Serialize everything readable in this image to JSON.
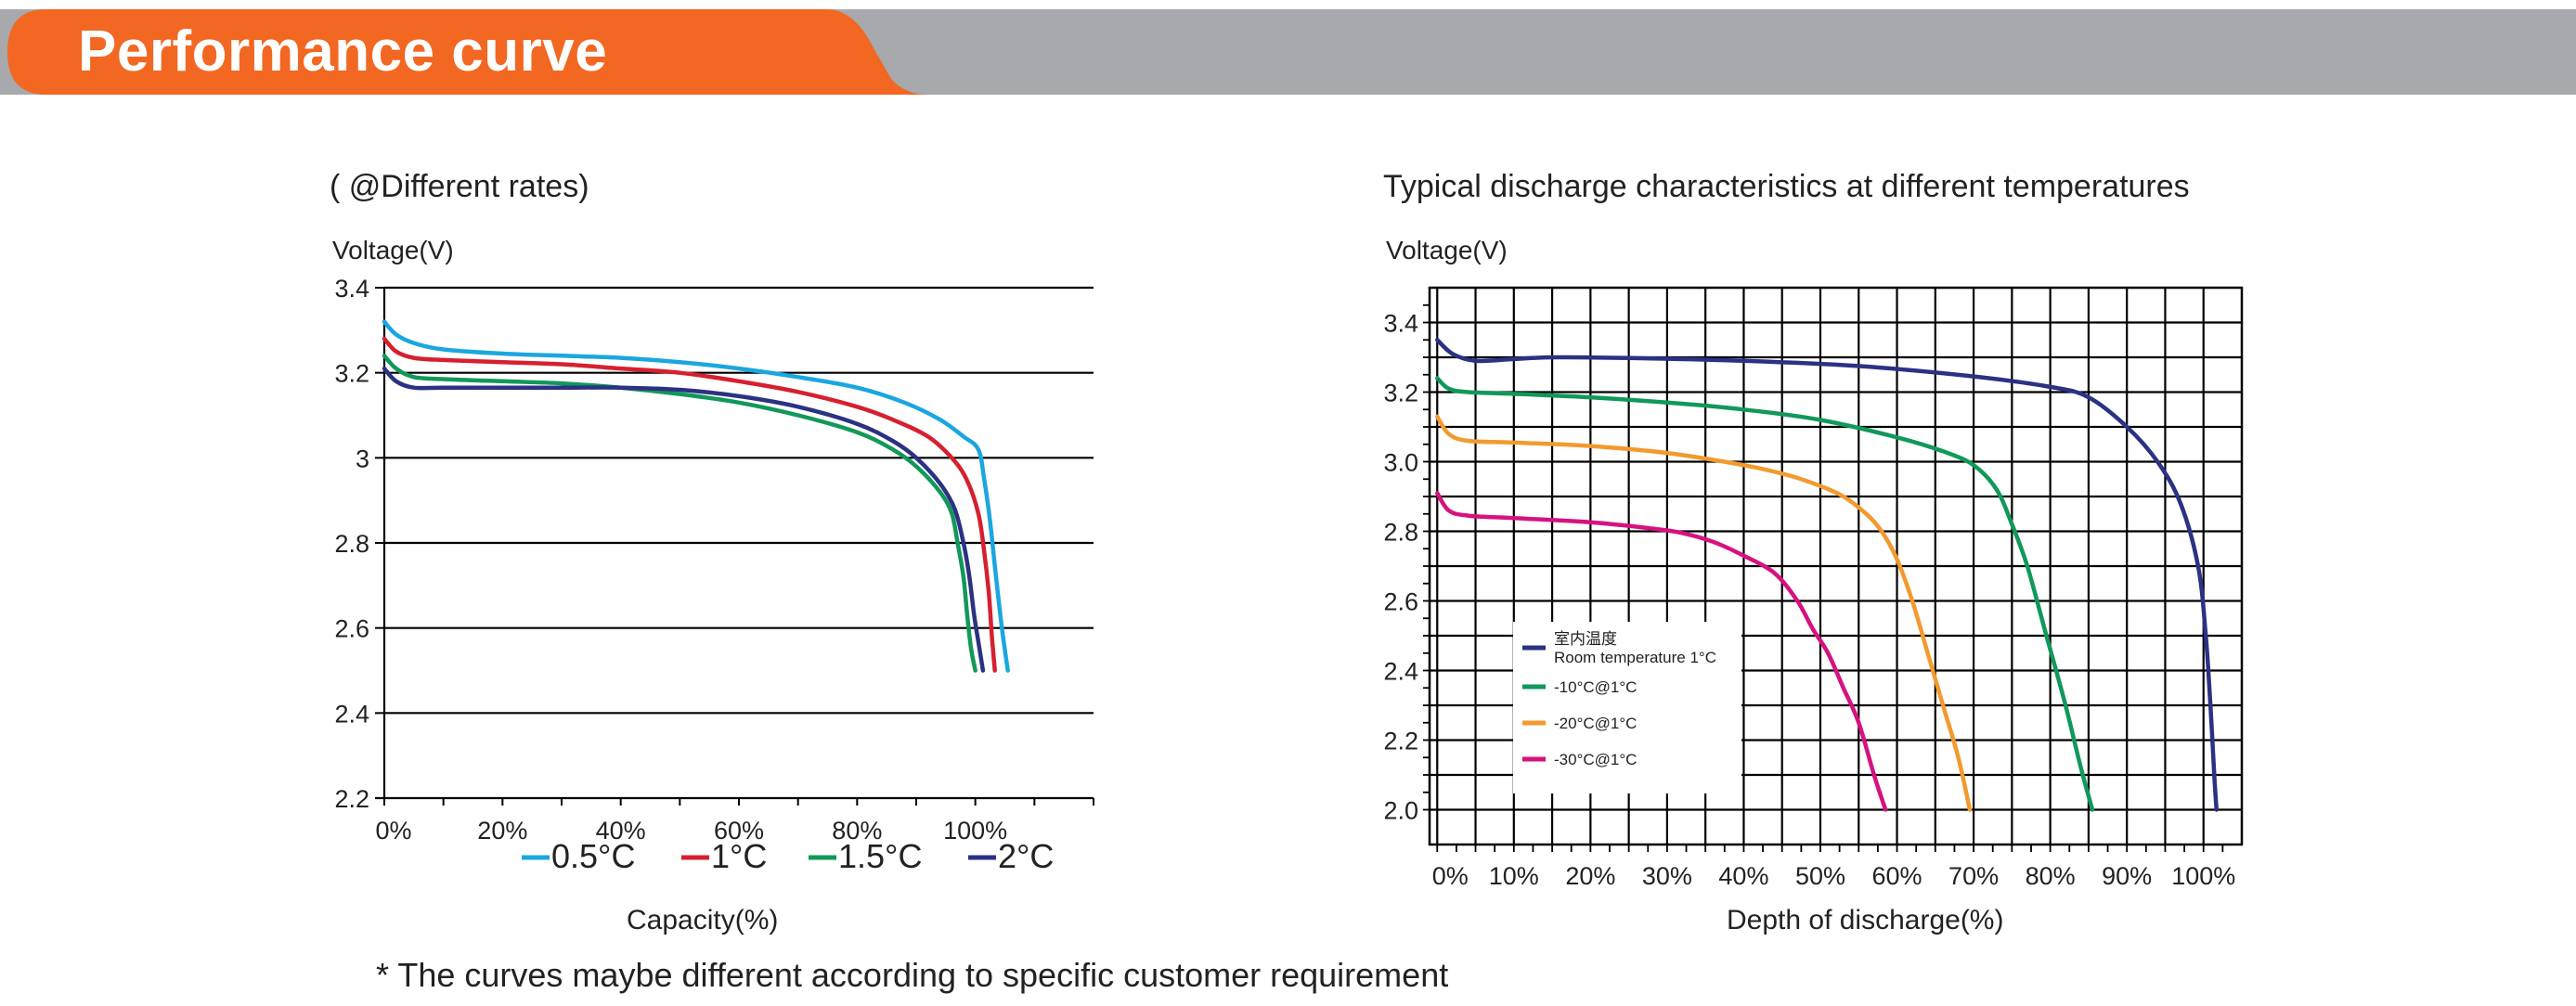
{
  "banner": {
    "title": "Performance curve",
    "accent_color": "#f26722",
    "bar_color": "#a7a9ac"
  },
  "footnote": "* The curves maybe different according to specific customer requirement",
  "chart_data": [
    {
      "type": "line",
      "title": "( @Different rates)",
      "xlabel": "Capacity(%)",
      "ylabel": "Voltage(V)",
      "xlim": [
        0,
        120
      ],
      "ylim": [
        2.2,
        3.4
      ],
      "x_ticks": [
        0,
        20,
        40,
        60,
        80,
        100
      ],
      "x_tick_labels": [
        "0%",
        "20%",
        "40%",
        "60%",
        "80%",
        "100%"
      ],
      "y_ticks": [
        2.2,
        2.4,
        2.6,
        2.8,
        3.0,
        3.2,
        3.4
      ],
      "y_tick_labels": [
        "2.2",
        "2.4",
        "2.6",
        "2.8",
        "3",
        "3.2",
        "3.4"
      ],
      "grid": "horizontal",
      "legend_position": "bottom",
      "series": [
        {
          "name": "0.5°C",
          "color": "#1aa7df",
          "points": [
            [
              0,
              3.32
            ],
            [
              2,
              3.29
            ],
            [
              5,
              3.27
            ],
            [
              10,
              3.255
            ],
            [
              20,
              3.245
            ],
            [
              30,
              3.24
            ],
            [
              40,
              3.235
            ],
            [
              50,
              3.225
            ],
            [
              60,
              3.21
            ],
            [
              70,
              3.19
            ],
            [
              80,
              3.165
            ],
            [
              88,
              3.13
            ],
            [
              94,
              3.09
            ],
            [
              98,
              3.05
            ],
            [
              100.5,
              3.02
            ],
            [
              101.5,
              2.95
            ],
            [
              102.5,
              2.85
            ],
            [
              103.5,
              2.72
            ],
            [
              104.5,
              2.6
            ],
            [
              105.5,
              2.5
            ]
          ]
        },
        {
          "name": "1°C",
          "color": "#d6202f",
          "points": [
            [
              0,
              3.28
            ],
            [
              2,
              3.25
            ],
            [
              5,
              3.235
            ],
            [
              10,
              3.23
            ],
            [
              20,
              3.225
            ],
            [
              30,
              3.22
            ],
            [
              40,
              3.21
            ],
            [
              50,
              3.2
            ],
            [
              60,
              3.18
            ],
            [
              70,
              3.155
            ],
            [
              80,
              3.12
            ],
            [
              86,
              3.09
            ],
            [
              92,
              3.05
            ],
            [
              96,
              3.0
            ],
            [
              98.5,
              2.95
            ],
            [
              100.5,
              2.87
            ],
            [
              101.5,
              2.78
            ],
            [
              102.3,
              2.68
            ],
            [
              102.8,
              2.58
            ],
            [
              103.3,
              2.5
            ]
          ]
        },
        {
          "name": "1.5°C",
          "color": "#11985a",
          "points": [
            [
              0,
              3.24
            ],
            [
              2,
              3.21
            ],
            [
              5,
              3.19
            ],
            [
              10,
              3.185
            ],
            [
              20,
              3.18
            ],
            [
              30,
              3.175
            ],
            [
              40,
              3.165
            ],
            [
              50,
              3.15
            ],
            [
              60,
              3.13
            ],
            [
              70,
              3.1
            ],
            [
              80,
              3.06
            ],
            [
              86,
              3.02
            ],
            [
              90,
              2.98
            ],
            [
              94,
              2.92
            ],
            [
              96,
              2.87
            ],
            [
              97,
              2.8
            ],
            [
              98,
              2.72
            ],
            [
              98.7,
              2.62
            ],
            [
              99.3,
              2.55
            ],
            [
              100,
              2.5
            ]
          ]
        },
        {
          "name": "2°C",
          "color": "#2b3183",
          "points": [
            [
              0,
              3.21
            ],
            [
              2,
              3.18
            ],
            [
              5,
              3.165
            ],
            [
              10,
              3.165
            ],
            [
              20,
              3.165
            ],
            [
              30,
              3.165
            ],
            [
              40,
              3.165
            ],
            [
              50,
              3.16
            ],
            [
              60,
              3.145
            ],
            [
              70,
              3.12
            ],
            [
              80,
              3.08
            ],
            [
              86,
              3.04
            ],
            [
              90,
              3.0
            ],
            [
              94,
              2.94
            ],
            [
              96.5,
              2.88
            ],
            [
              98,
              2.8
            ],
            [
              99,
              2.72
            ],
            [
              99.8,
              2.63
            ],
            [
              100.6,
              2.56
            ],
            [
              101.3,
              2.5
            ]
          ]
        }
      ]
    },
    {
      "type": "line",
      "title": "Typical discharge characteristics at different temperatures",
      "xlabel": "Depth of discharge(%)",
      "ylabel": "Voltage(V)",
      "xlim": [
        -1,
        105
      ],
      "ylim": [
        1.9,
        3.5
      ],
      "x_ticks": [
        0,
        10,
        20,
        30,
        40,
        50,
        60,
        70,
        80,
        90,
        100
      ],
      "x_tick_labels": [
        "0%",
        "10%",
        "20%",
        "30%",
        "40%",
        "50%",
        "60%",
        "70%",
        "80%",
        "90%",
        "100%"
      ],
      "y_ticks": [
        2.0,
        2.2,
        2.4,
        2.6,
        2.8,
        3.0,
        3.2,
        3.4
      ],
      "y_tick_labels": [
        "2.0",
        "2.2",
        "2.4",
        "2.6",
        "2.8",
        "3.0",
        "3.2",
        "3.4"
      ],
      "grid": "both",
      "legend_position": "lower-left",
      "series": [
        {
          "name": "Room temperature 1°C",
          "name_cn": "室内温度",
          "color": "#2b3183",
          "points": [
            [
              0,
              3.35
            ],
            [
              2,
              3.31
            ],
            [
              5,
              3.29
            ],
            [
              10,
              3.295
            ],
            [
              15,
              3.3
            ],
            [
              25,
              3.298
            ],
            [
              40,
              3.29
            ],
            [
              55,
              3.275
            ],
            [
              70,
              3.245
            ],
            [
              80,
              3.215
            ],
            [
              85,
              3.185
            ],
            [
              90,
              3.1
            ],
            [
              94,
              3.0
            ],
            [
              97,
              2.88
            ],
            [
              99.3,
              2.7
            ],
            [
              100.3,
              2.5
            ],
            [
              100.9,
              2.3
            ],
            [
              101.4,
              2.1
            ],
            [
              101.7,
              2.0
            ]
          ]
        },
        {
          "name": "-10°C@1°C",
          "color": "#11985a",
          "points": [
            [
              0,
              3.24
            ],
            [
              1.5,
              3.21
            ],
            [
              4,
              3.2
            ],
            [
              10,
              3.195
            ],
            [
              20,
              3.185
            ],
            [
              30,
              3.17
            ],
            [
              40,
              3.15
            ],
            [
              50,
              3.12
            ],
            [
              60,
              3.07
            ],
            [
              66,
              3.03
            ],
            [
              70,
              2.99
            ],
            [
              73,
              2.92
            ],
            [
              75,
              2.82
            ],
            [
              77,
              2.7
            ],
            [
              79.5,
              2.5
            ],
            [
              82,
              2.3
            ],
            [
              84,
              2.12
            ],
            [
              85.5,
              2.0
            ]
          ]
        },
        {
          "name": "-20°C@1°C",
          "color": "#f29a2e",
          "points": [
            [
              0,
              3.13
            ],
            [
              1.5,
              3.08
            ],
            [
              4,
              3.06
            ],
            [
              10,
              3.055
            ],
            [
              20,
              3.045
            ],
            [
              30,
              3.025
            ],
            [
              40,
              2.99
            ],
            [
              46,
              2.96
            ],
            [
              50,
              2.93
            ],
            [
              53,
              2.9
            ],
            [
              56,
              2.85
            ],
            [
              58,
              2.8
            ],
            [
              60,
              2.72
            ],
            [
              62,
              2.6
            ],
            [
              64,
              2.45
            ],
            [
              66,
              2.3
            ],
            [
              68,
              2.15
            ],
            [
              69.5,
              2.0
            ]
          ]
        },
        {
          "name": "-30°C@1°C",
          "color": "#d6127f",
          "points": [
            [
              0,
              2.91
            ],
            [
              1.5,
              2.86
            ],
            [
              4,
              2.845
            ],
            [
              10,
              2.838
            ],
            [
              20,
              2.826
            ],
            [
              28,
              2.808
            ],
            [
              32,
              2.795
            ],
            [
              36,
              2.77
            ],
            [
              40,
              2.73
            ],
            [
              44,
              2.68
            ],
            [
              47,
              2.6
            ],
            [
              49,
              2.52
            ],
            [
              51,
              2.45
            ],
            [
              53,
              2.35
            ],
            [
              55,
              2.25
            ],
            [
              57,
              2.1
            ],
            [
              58.5,
              2.0
            ]
          ]
        }
      ]
    }
  ]
}
